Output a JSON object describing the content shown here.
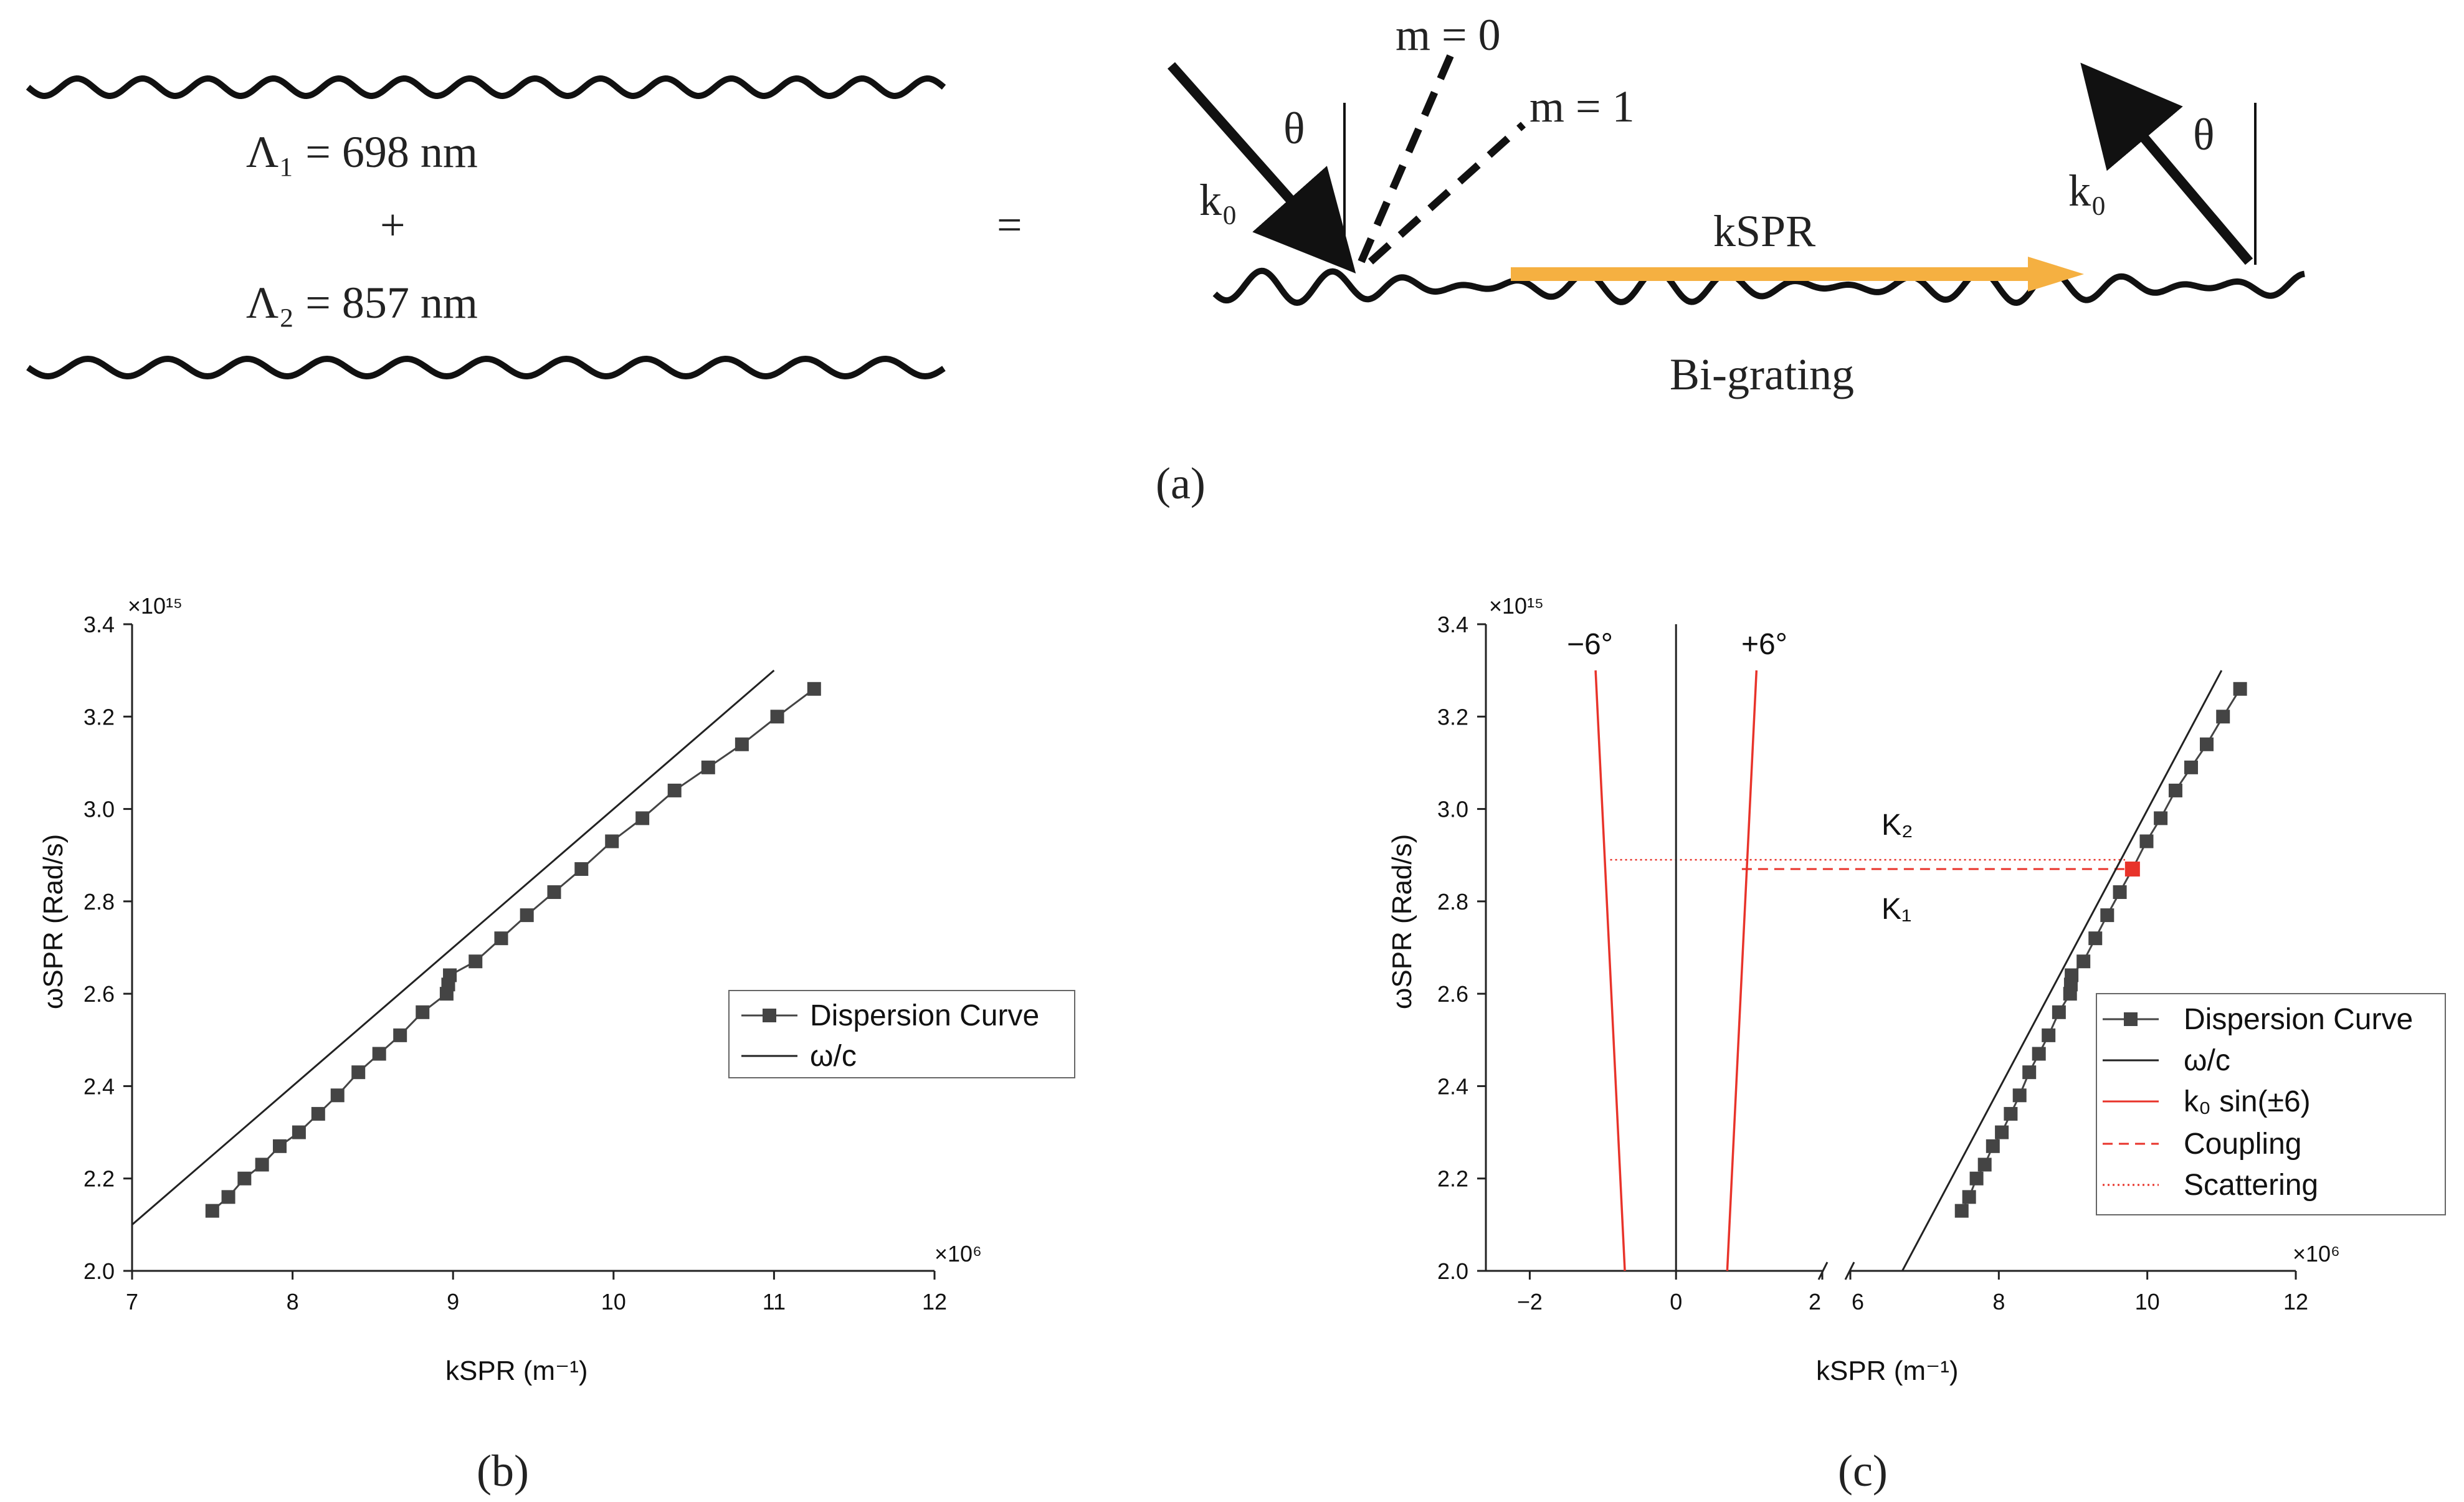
{
  "panel_a": {
    "lambda1": "Λ₁ = 698 nm",
    "plus": "+",
    "lambda2": "Λ₂ = 857 nm",
    "equals": "=",
    "theta": "θ",
    "k0": "k₀",
    "m0": "m = 0",
    "m1": "m = 1",
    "kspr": "kSPR",
    "bigrating": "Bi-grating",
    "arrow_color": "#f5b041",
    "caption": "(a)"
  },
  "chart_data": [
    {
      "type": "line",
      "panel": "b",
      "caption": "(b)",
      "xlabel": "kSPR (m⁻¹)",
      "ylabel": "ωSPR (Rad/s)",
      "x_multiplier": "×10⁶",
      "y_multiplier": "×10¹⁵",
      "xlim": [
        7,
        12
      ],
      "ylim": [
        2.0,
        3.4
      ],
      "xticks": [
        "7",
        "8",
        "9",
        "10",
        "11",
        "12"
      ],
      "yticks": [
        "2.0",
        "2.2",
        "2.4",
        "2.6",
        "2.8",
        "3.0",
        "3.2",
        "3.4"
      ],
      "legend_position": "center-right",
      "series": [
        {
          "name": "Dispersion Curve",
          "style": "line-square-markers",
          "color": "#444444",
          "x": [
            7.5,
            7.6,
            7.7,
            7.81,
            7.92,
            8.04,
            8.16,
            8.28,
            8.41,
            8.54,
            8.67,
            8.81,
            8.96,
            8.97,
            8.98,
            9.14,
            9.3,
            9.46,
            9.63,
            9.8,
            9.99,
            10.18,
            10.38,
            10.59,
            10.8,
            11.02,
            11.25
          ],
          "y": [
            2.13,
            2.16,
            2.2,
            2.23,
            2.27,
            2.3,
            2.34,
            2.38,
            2.43,
            2.47,
            2.51,
            2.56,
            2.6,
            2.62,
            2.64,
            2.67,
            2.72,
            2.77,
            2.82,
            2.87,
            2.93,
            2.98,
            3.04,
            3.09,
            3.14,
            3.2,
            3.26
          ]
        },
        {
          "name": "ω/c",
          "style": "line",
          "color": "#222222",
          "x": [
            7.0,
            11.0
          ],
          "y": [
            2.1,
            3.3
          ]
        }
      ]
    },
    {
      "type": "line",
      "panel": "c",
      "caption": "(c)",
      "xlabel": "kSPR (m⁻¹)",
      "ylabel": "ωSPR (Rad/s)",
      "x_multiplier": "×10⁶",
      "y_multiplier": "×10¹⁵",
      "x_broken_axis": {
        "left_range": [
          -2.6,
          2
        ],
        "right_range": [
          6,
          12
        ]
      },
      "ylim": [
        2.0,
        3.4
      ],
      "xticks": [
        "−2",
        "0",
        "2",
        "6",
        "8",
        "10",
        "12"
      ],
      "yticks": [
        "2.0",
        "2.2",
        "2.4",
        "2.6",
        "2.8",
        "3.0",
        "3.2",
        "3.4"
      ],
      "legend_position": "bottom-right",
      "annotations": [
        "−6°",
        "+6°",
        "K₂",
        "K₁"
      ],
      "series": [
        {
          "name": "Dispersion Curve",
          "style": "line-square-markers",
          "color": "#444444",
          "x": [
            7.5,
            7.6,
            7.7,
            7.81,
            7.92,
            8.04,
            8.16,
            8.28,
            8.41,
            8.54,
            8.67,
            8.81,
            8.96,
            8.97,
            8.98,
            9.14,
            9.3,
            9.46,
            9.63,
            9.8,
            9.99,
            10.18,
            10.38,
            10.59,
            10.8,
            11.02,
            11.25
          ],
          "y": [
            2.13,
            2.16,
            2.2,
            2.23,
            2.27,
            2.3,
            2.34,
            2.38,
            2.43,
            2.47,
            2.51,
            2.56,
            2.6,
            2.62,
            2.64,
            2.67,
            2.72,
            2.77,
            2.82,
            2.87,
            2.93,
            2.98,
            3.04,
            3.09,
            3.14,
            3.2,
            3.26
          ]
        },
        {
          "name": "ω/c",
          "style": "line",
          "color": "#222222",
          "lines": [
            {
              "x": [
                6.7,
                11.0
              ],
              "y": [
                2.0,
                3.3
              ]
            },
            {
              "x": [
                0,
                0
              ],
              "y": [
                2.0,
                3.4
              ]
            }
          ]
        },
        {
          "name": "k₀ sin(±6)",
          "style": "line",
          "color": "#e8332a",
          "lines": [
            {
              "x": [
                -0.7,
                -1.1
              ],
              "y": [
                2.0,
                3.3
              ]
            },
            {
              "x": [
                0.7,
                1.1
              ],
              "y": [
                2.0,
                3.3
              ]
            }
          ]
        },
        {
          "name": "Coupling",
          "style": "dashed",
          "color": "#e8332a",
          "lines": [
            {
              "x": [
                0.9,
                9.8
              ],
              "y": [
                2.87,
                2.87
              ]
            }
          ],
          "marker_point": {
            "x": 9.8,
            "y": 2.87
          }
        },
        {
          "name": "Scattering",
          "style": "dotted",
          "color": "#e8332a",
          "lines": [
            {
              "x": [
                -0.9,
                9.7
              ],
              "y": [
                2.89,
                2.89
              ]
            }
          ]
        }
      ]
    }
  ]
}
